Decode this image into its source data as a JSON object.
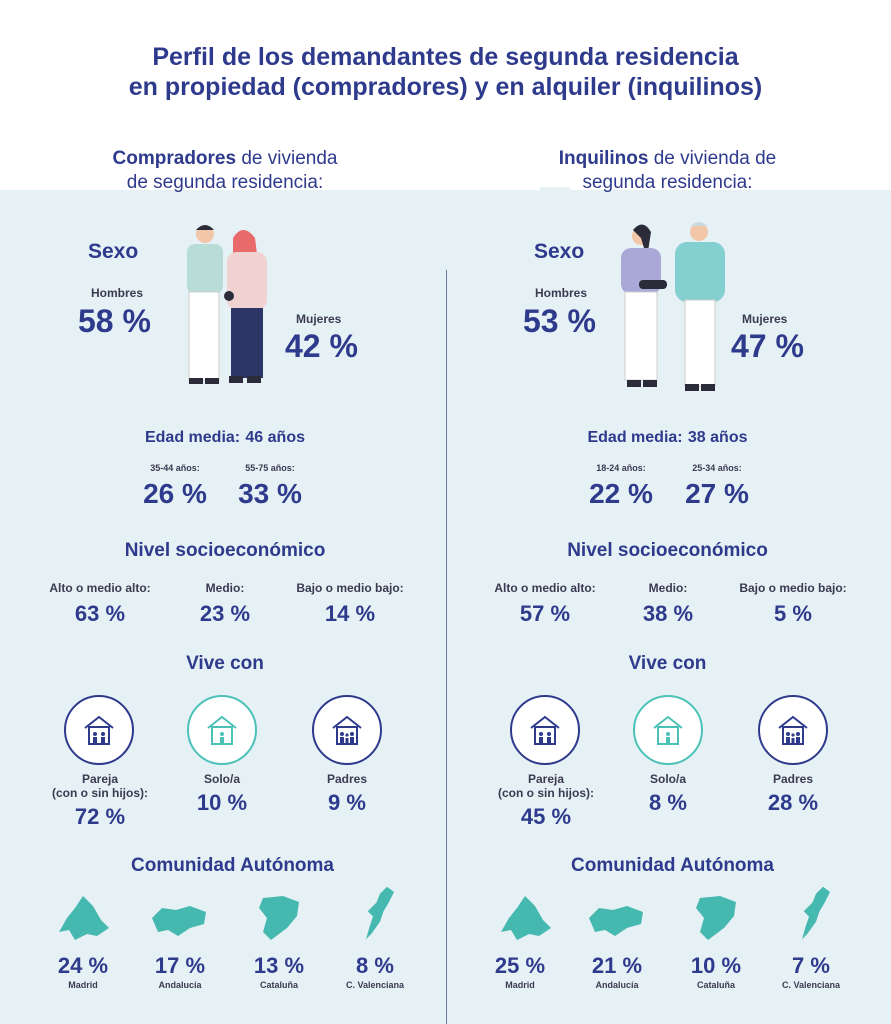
{
  "title": {
    "line1": "Perfil de los demandantes de segunda residencia",
    "line2": "en propiedad (compradores) y en alquiler (inquilinos)"
  },
  "colors": {
    "navy": "#2e3a8c",
    "teal": "#4cc1b8",
    "light_bg": "#e6f1f5",
    "map_teal": "#45b8b0"
  },
  "left": {
    "heading_bold": "Compradores",
    "heading_rest": " de vivienda",
    "heading_line2": "de segunda residencia:",
    "sexo": {
      "label": "Sexo",
      "men_label": "Hombres",
      "men_pct": "58 %",
      "women_label": "Mujeres",
      "women_pct": "42 %"
    },
    "edad": {
      "label": "Edad media:",
      "value": "46 años",
      "groups": [
        {
          "label": "35-44 años:",
          "pct": "26 %"
        },
        {
          "label": "55-75 años:",
          "pct": "33 %"
        }
      ]
    },
    "nivel": {
      "label": "Nivel socioeconómico",
      "items": [
        {
          "label": "Alto o medio alto:",
          "pct": "63 %"
        },
        {
          "label": "Medio:",
          "pct": "23 %"
        },
        {
          "label": "Bajo o medio bajo:",
          "pct": "14 %"
        }
      ]
    },
    "vive": {
      "label": "Vive con",
      "items": [
        {
          "label1": "Pareja",
          "label2": "(con o sin hijos):",
          "pct": "72 %",
          "icon": "house-family-icon"
        },
        {
          "label1": "Solo/a",
          "pct": "10 %",
          "icon": "house-single-icon"
        },
        {
          "label1": "Padres",
          "pct": "9 %",
          "icon": "house-parents-icon"
        }
      ]
    },
    "comunidad": {
      "label": "Comunidad Autónoma",
      "items": [
        {
          "name": "Madrid",
          "pct": "24 %",
          "icon": "madrid-map-icon"
        },
        {
          "name": "Andalucía",
          "pct": "17 %",
          "icon": "andalucia-map-icon"
        },
        {
          "name": "Cataluña",
          "pct": "13 %",
          "icon": "cataluna-map-icon"
        },
        {
          "name": "C. Valenciana",
          "pct": "8 %",
          "icon": "valenciana-map-icon"
        }
      ]
    }
  },
  "right": {
    "heading_bold": "Inquilinos",
    "heading_rest": " de vivienda de",
    "heading_line2": "segunda residencia:",
    "sexo": {
      "label": "Sexo",
      "men_label": "Hombres",
      "men_pct": "53 %",
      "women_label": "Mujeres",
      "women_pct": "47 %"
    },
    "edad": {
      "label": "Edad media:",
      "value": "38 años",
      "groups": [
        {
          "label": "18-24 años:",
          "pct": "22 %"
        },
        {
          "label": "25-34 años:",
          "pct": "27 %"
        }
      ]
    },
    "nivel": {
      "label": "Nivel socioeconómico",
      "items": [
        {
          "label": "Alto o medio alto:",
          "pct": "57 %"
        },
        {
          "label": "Medio:",
          "pct": "38 %"
        },
        {
          "label": "Bajo o medio bajo:",
          "pct": "5 %"
        }
      ]
    },
    "vive": {
      "label": "Vive con",
      "items": [
        {
          "label1": "Pareja",
          "label2": "(con o sin hijos):",
          "pct": "45 %",
          "icon": "house-family-icon"
        },
        {
          "label1": "Solo/a",
          "pct": "8 %",
          "icon": "house-single-icon"
        },
        {
          "label1": "Padres",
          "pct": "28 %",
          "icon": "house-parents-icon"
        }
      ]
    },
    "comunidad": {
      "label": "Comunidad Autónoma",
      "items": [
        {
          "name": "Madrid",
          "pct": "25 %",
          "icon": "madrid-map-icon"
        },
        {
          "name": "Andalucía",
          "pct": "21 %",
          "icon": "andalucia-map-icon"
        },
        {
          "name": "Cataluña",
          "pct": "10 %",
          "icon": "cataluna-map-icon"
        },
        {
          "name": "C. Valenciana",
          "pct": "7 %",
          "icon": "valenciana-map-icon"
        }
      ]
    }
  }
}
